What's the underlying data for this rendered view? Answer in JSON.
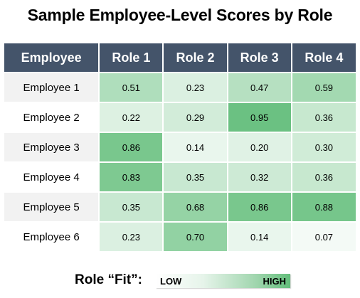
{
  "title": "Sample Employee-Level Scores by Role",
  "colors": {
    "header_bg": "#44546a",
    "header_text": "#ffffff",
    "scale_low": "#ffffff",
    "scale_high": "#63be7b"
  },
  "legend": {
    "label": "Role “Fit”:",
    "low": "LOW",
    "high": "HIGH"
  },
  "chart_data": {
    "type": "heatmap",
    "title": "Sample Employee-Level Scores by Role",
    "corner_label": "Employee",
    "columns": [
      "Role 1",
      "Role 2",
      "Role 3",
      "Role 4"
    ],
    "rows": [
      "Employee 1",
      "Employee 2",
      "Employee 3",
      "Employee 4",
      "Employee 5",
      "Employee 6"
    ],
    "values": [
      [
        "0.51",
        "0.23",
        "0.47",
        "0.59"
      ],
      [
        "0.22",
        "0.29",
        "0.95",
        "0.36"
      ],
      [
        "0.86",
        "0.14",
        "0.20",
        "0.30"
      ],
      [
        "0.83",
        "0.35",
        "0.32",
        "0.36"
      ],
      [
        "0.35",
        "0.68",
        "0.86",
        "0.88"
      ],
      [
        "0.23",
        "0.70",
        "0.14",
        "0.07"
      ]
    ],
    "color_scale": [
      "#ffffff",
      "#63be7b"
    ]
  }
}
